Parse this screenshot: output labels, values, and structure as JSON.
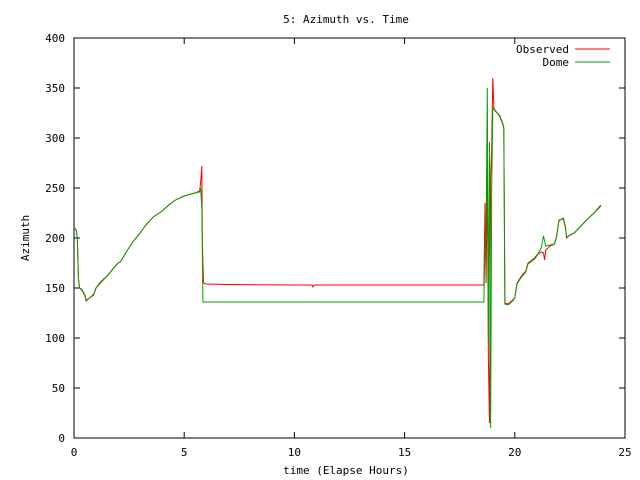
{
  "chart_data": {
    "type": "line",
    "title": "5: Azimuth vs. Time",
    "xlabel": "time (Elapse Hours)",
    "ylabel": "Azimuth",
    "xlim": [
      0,
      25
    ],
    "ylim": [
      0,
      400
    ],
    "x_ticks": [
      0,
      5,
      10,
      15,
      20,
      25
    ],
    "y_ticks": [
      0,
      50,
      100,
      150,
      200,
      250,
      300,
      350,
      400
    ],
    "grid": false,
    "legend_position": "top-right",
    "series": [
      {
        "name": "Observed",
        "color": "#ff0000",
        "points": [
          [
            0.0,
            211
          ],
          [
            0.1,
            208
          ],
          [
            0.15,
            200
          ],
          [
            0.2,
            160
          ],
          [
            0.25,
            150
          ],
          [
            0.35,
            148
          ],
          [
            0.5,
            142
          ],
          [
            0.55,
            137
          ],
          [
            0.7,
            140
          ],
          [
            0.9,
            143
          ],
          [
            1.0,
            150
          ],
          [
            1.2,
            155
          ],
          [
            1.5,
            162
          ],
          [
            1.8,
            170
          ],
          [
            2.0,
            175
          ],
          [
            2.1,
            176
          ],
          [
            2.4,
            187
          ],
          [
            2.7,
            197
          ],
          [
            3.0,
            205
          ],
          [
            3.3,
            214
          ],
          [
            3.6,
            221
          ],
          [
            4.0,
            227
          ],
          [
            4.3,
            233
          ],
          [
            4.6,
            238
          ],
          [
            5.0,
            242
          ],
          [
            5.3,
            244
          ],
          [
            5.5,
            245
          ],
          [
            5.7,
            247
          ],
          [
            5.75,
            256
          ],
          [
            5.8,
            272
          ],
          [
            5.82,
            200
          ],
          [
            5.85,
            175
          ],
          [
            5.88,
            155
          ],
          [
            6.0,
            154
          ],
          [
            7.0,
            153.5
          ],
          [
            10.0,
            153
          ],
          [
            10.8,
            153
          ],
          [
            10.85,
            151
          ],
          [
            10.9,
            153
          ],
          [
            15.0,
            153
          ],
          [
            18.5,
            153
          ],
          [
            18.6,
            153
          ],
          [
            18.65,
            235
          ],
          [
            18.7,
            155
          ],
          [
            18.75,
            270
          ],
          [
            18.8,
            78
          ],
          [
            18.85,
            15
          ],
          [
            18.9,
            260
          ],
          [
            18.95,
            290
          ],
          [
            19.0,
            360
          ],
          [
            19.05,
            330
          ],
          [
            19.1,
            327
          ],
          [
            19.3,
            323
          ],
          [
            19.45,
            315
          ],
          [
            19.5,
            310
          ],
          [
            19.55,
            135
          ],
          [
            19.7,
            134
          ],
          [
            19.9,
            138
          ],
          [
            20.0,
            140
          ],
          [
            20.1,
            155
          ],
          [
            20.3,
            162
          ],
          [
            20.5,
            167
          ],
          [
            20.6,
            175
          ],
          [
            20.9,
            180
          ],
          [
            21.0,
            183
          ],
          [
            21.2,
            186
          ],
          [
            21.3,
            185
          ],
          [
            21.35,
            178
          ],
          [
            21.4,
            188
          ],
          [
            21.6,
            192
          ],
          [
            21.8,
            194
          ],
          [
            21.9,
            202
          ],
          [
            22.0,
            218
          ],
          [
            22.2,
            219
          ],
          [
            22.3,
            210
          ],
          [
            22.35,
            200
          ],
          [
            22.5,
            203
          ],
          [
            22.7,
            205
          ],
          [
            23.0,
            212
          ],
          [
            23.3,
            219
          ],
          [
            23.6,
            225
          ],
          [
            23.9,
            232
          ]
        ]
      },
      {
        "name": "Dome",
        "color": "#00a000",
        "points": [
          [
            0.0,
            210
          ],
          [
            0.1,
            208
          ],
          [
            0.15,
            200
          ],
          [
            0.2,
            160
          ],
          [
            0.25,
            150
          ],
          [
            0.35,
            149
          ],
          [
            0.5,
            143
          ],
          [
            0.55,
            138
          ],
          [
            0.7,
            140
          ],
          [
            0.9,
            144
          ],
          [
            1.0,
            150
          ],
          [
            1.2,
            156
          ],
          [
            1.5,
            162
          ],
          [
            1.8,
            170
          ],
          [
            2.0,
            175
          ],
          [
            2.1,
            176
          ],
          [
            2.4,
            187
          ],
          [
            2.7,
            197
          ],
          [
            3.0,
            205
          ],
          [
            3.3,
            214
          ],
          [
            3.6,
            221
          ],
          [
            4.0,
            227
          ],
          [
            4.3,
            233
          ],
          [
            4.6,
            238
          ],
          [
            5.0,
            242
          ],
          [
            5.3,
            244
          ],
          [
            5.5,
            245
          ],
          [
            5.7,
            246
          ],
          [
            5.75,
            250
          ],
          [
            5.8,
            230
          ],
          [
            5.82,
            190
          ],
          [
            5.85,
            136
          ],
          [
            6.0,
            136
          ],
          [
            10.0,
            136
          ],
          [
            15.0,
            136
          ],
          [
            18.5,
            136
          ],
          [
            18.6,
            136
          ],
          [
            18.65,
            200
          ],
          [
            18.7,
            205
          ],
          [
            18.75,
            350
          ],
          [
            18.8,
            95
          ],
          [
            18.85,
            296
          ],
          [
            18.9,
            10
          ],
          [
            18.95,
            250
          ],
          [
            19.0,
            330
          ],
          [
            19.1,
            328
          ],
          [
            19.3,
            322
          ],
          [
            19.45,
            314
          ],
          [
            19.5,
            310
          ],
          [
            19.55,
            134
          ],
          [
            19.7,
            133
          ],
          [
            19.9,
            137
          ],
          [
            20.0,
            140
          ],
          [
            20.1,
            154
          ],
          [
            20.3,
            161
          ],
          [
            20.5,
            166
          ],
          [
            20.6,
            174
          ],
          [
            20.9,
            179
          ],
          [
            21.0,
            182
          ],
          [
            21.2,
            190
          ],
          [
            21.3,
            202
          ],
          [
            21.4,
            192
          ],
          [
            21.6,
            193
          ],
          [
            21.8,
            194
          ],
          [
            21.9,
            203
          ],
          [
            22.0,
            217
          ],
          [
            22.2,
            220
          ],
          [
            22.3,
            211
          ],
          [
            22.35,
            201
          ],
          [
            22.5,
            203
          ],
          [
            22.7,
            205
          ],
          [
            23.0,
            212
          ],
          [
            23.3,
            219
          ],
          [
            23.6,
            225
          ],
          [
            23.9,
            233
          ]
        ]
      }
    ]
  }
}
